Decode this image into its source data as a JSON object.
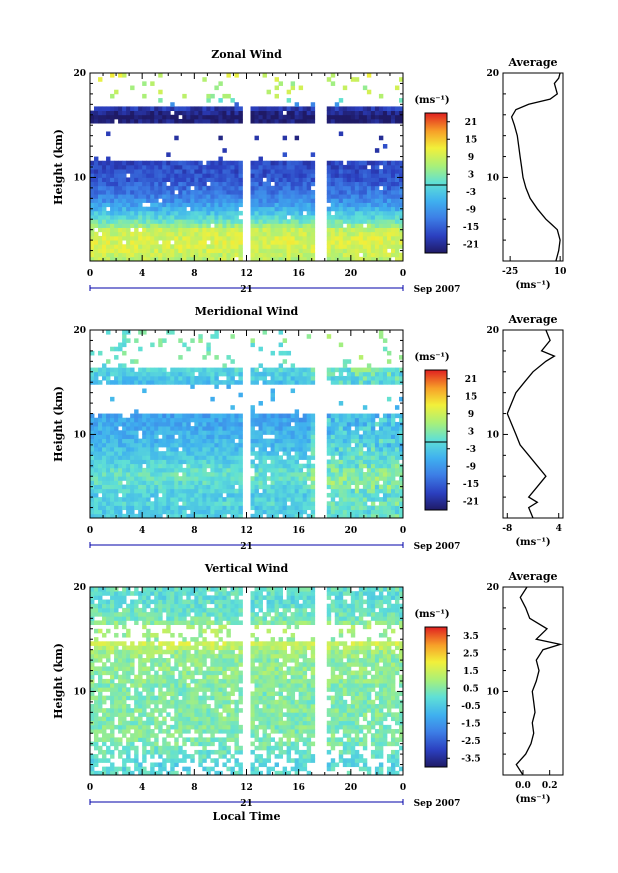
{
  "chart_data": [
    {
      "type": "heatmap",
      "title": "Zonal Wind",
      "xlabel": "",
      "ylabel": "Height (km)",
      "x_ticks": [
        "0",
        "4",
        "8",
        "12",
        "16",
        "20",
        "0"
      ],
      "y_ticks": [
        "10",
        "20"
      ],
      "xlim": [
        0,
        24
      ],
      "ylim": [
        2,
        20
      ],
      "day_label": "21",
      "date_label": "Sep 2007",
      "data_gaps_hours": [
        [
          11.8,
          12.4
        ],
        [
          17.3,
          18.0
        ]
      ],
      "colorbar": {
        "unit": "(ms⁻¹)",
        "levels": [
          "21",
          "15",
          "9",
          "3",
          "-3",
          "-9",
          "-15",
          "-21"
        ],
        "range": [
          -24,
          24
        ]
      },
      "profile": {
        "title": "Average",
        "xlabel": "(ms⁻¹)",
        "x_ticks": [
          "-25",
          "10"
        ],
        "xlim": [
          -30,
          12
        ],
        "y_ticks": [
          "10",
          "20"
        ],
        "height_km": [
          2.0,
          3.0,
          4.0,
          5.0,
          5.5,
          6.0,
          7.0,
          8.0,
          9.0,
          10.0,
          11.0,
          12.0,
          13.0,
          14.0,
          15.0,
          15.8,
          16.5,
          17.0,
          17.5,
          18.0,
          19.0,
          19.5,
          20.0
        ],
        "wind_ms": [
          7,
          9,
          10,
          8,
          4,
          0,
          -6,
          -11,
          -14,
          -16,
          -17,
          -18,
          -19,
          -20,
          -22,
          -24,
          -21,
          -12,
          3,
          8,
          6,
          9,
          10
        ]
      }
    },
    {
      "type": "heatmap",
      "title": "Meridional Wind",
      "xlabel": "",
      "ylabel": "Height (km)",
      "x_ticks": [
        "0",
        "4",
        "8",
        "12",
        "16",
        "20",
        "0"
      ],
      "y_ticks": [
        "10",
        "20"
      ],
      "xlim": [
        0,
        24
      ],
      "ylim": [
        2,
        20
      ],
      "day_label": "21",
      "date_label": "Sep 2007",
      "data_gaps_hours": [
        [
          11.8,
          12.4
        ],
        [
          17.3,
          18.0
        ]
      ],
      "colorbar": {
        "unit": "(ms⁻¹)",
        "levels": [
          "21",
          "15",
          "9",
          "3",
          "-3",
          "-9",
          "-15",
          "-21"
        ],
        "range": [
          -24,
          24
        ]
      },
      "profile": {
        "title": "Average",
        "xlabel": "(ms⁻¹)",
        "x_ticks": [
          "-8",
          "4"
        ],
        "xlim": [
          -9,
          5
        ],
        "y_ticks": [
          "10",
          "20"
        ],
        "height_km": [
          2.0,
          3.0,
          3.5,
          4.0,
          5.0,
          6.0,
          7.0,
          8.0,
          9.0,
          10.0,
          11.0,
          12.0,
          13.0,
          14.0,
          15.0,
          16.0,
          17.0,
          17.5,
          18.0,
          19.0,
          20.0
        ],
        "wind_ms": [
          -2,
          -3,
          -1,
          -3,
          -1,
          1,
          -1,
          -3,
          -5,
          -6,
          -7,
          -8,
          -7,
          -6,
          -4,
          -2,
          1,
          3,
          0,
          2,
          1
        ]
      }
    },
    {
      "type": "heatmap",
      "title": "Vertical Wind",
      "xlabel": "Local Time",
      "ylabel": "Height (km)",
      "x_ticks": [
        "0",
        "4",
        "8",
        "12",
        "16",
        "20",
        "0"
      ],
      "y_ticks": [
        "10",
        "20"
      ],
      "xlim": [
        0,
        24
      ],
      "ylim": [
        2,
        20
      ],
      "day_label": "21",
      "date_label": "Sep 2007",
      "data_gaps_hours": [
        [
          11.8,
          12.4
        ],
        [
          17.3,
          18.0
        ]
      ],
      "colorbar": {
        "unit": "(ms⁻¹)",
        "levels": [
          "3.5",
          "2.5",
          "1.5",
          "0.5",
          "-0.5",
          "-1.5",
          "-2.5",
          "-3.5"
        ],
        "range": [
          -4,
          4
        ]
      },
      "profile": {
        "title": "Average",
        "xlabel": "(ms⁻¹)",
        "x_ticks": [
          "0.0",
          "0.2"
        ],
        "xlim": [
          -0.15,
          0.3
        ],
        "y_ticks": [
          "10",
          "20"
        ],
        "height_km": [
          2.0,
          3.0,
          4.0,
          5.0,
          6.0,
          7.0,
          8.0,
          9.0,
          10.0,
          11.0,
          12.0,
          13.0,
          14.0,
          14.5,
          15.0,
          16.0,
          17.0,
          18.0,
          19.0,
          20.0
        ],
        "wind_ms": [
          0.0,
          -0.05,
          0.02,
          0.06,
          0.08,
          0.07,
          0.09,
          0.08,
          0.07,
          0.1,
          0.12,
          0.1,
          0.15,
          0.28,
          0.1,
          0.18,
          0.05,
          0.02,
          -0.02,
          0.03
        ]
      }
    }
  ]
}
